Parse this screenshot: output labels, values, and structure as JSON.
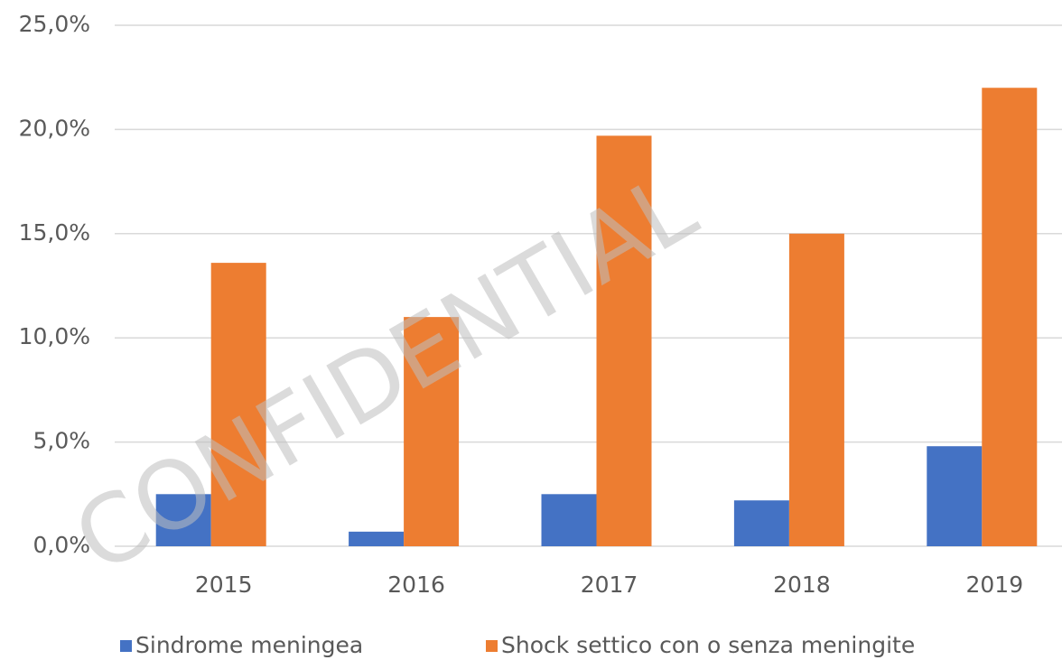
{
  "chart_data": {
    "type": "bar",
    "categories": [
      "2015",
      "2016",
      "2017",
      "2018",
      "2019"
    ],
    "series": [
      {
        "name": "Sindrome meningea",
        "color": "#4472c4",
        "values": [
          2.5,
          0.7,
          2.5,
          2.2,
          4.8
        ]
      },
      {
        "name": "Shock settico con o senza meningite",
        "color": "#ed7d31",
        "values": [
          13.6,
          11.0,
          19.7,
          15.0,
          22.0
        ]
      }
    ],
    "ylim": [
      0,
      25
    ],
    "yticks": [
      {
        "value": 0,
        "label": "0,0%"
      },
      {
        "value": 5,
        "label": "5,0%"
      },
      {
        "value": 10,
        "label": "10,0%"
      },
      {
        "value": 15,
        "label": "15,0%"
      },
      {
        "value": 20,
        "label": "20,0%"
      },
      {
        "value": 25,
        "label": "25,0%"
      }
    ],
    "grid": true,
    "legend": "bottom",
    "annotation": "CONFIDENTIAL"
  }
}
